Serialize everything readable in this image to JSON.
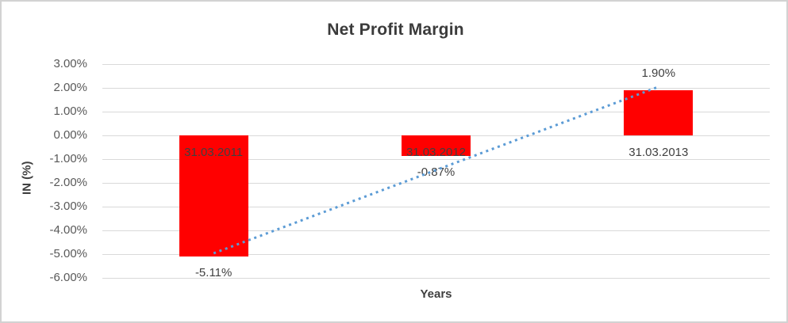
{
  "chart_data": {
    "type": "bar",
    "title": "Net Profit Margin",
    "xlabel": "Years",
    "ylabel": "IN (%)",
    "categories": [
      "31.03.2011",
      "31.03.2012",
      "31.03.2013"
    ],
    "values": [
      -5.11,
      -0.87,
      1.9
    ],
    "data_labels": [
      "-5.11%",
      "-0.87%",
      "1.90%"
    ],
    "ylim": [
      -6,
      3
    ],
    "ytick_step": 1,
    "ytick_labels": [
      "3.00%",
      "2.00%",
      "1.00%",
      "0.00%",
      "-1.00%",
      "-2.00%",
      "-3.00%",
      "-4.00%",
      "-5.00%",
      "-6.00%"
    ],
    "grid": true,
    "legend": false,
    "bar_color": "#ff0000",
    "trendline": {
      "type": "linear",
      "style": "dotted",
      "color": "#5b9bd5"
    },
    "colors": {
      "gridline": "#d9d9d9",
      "tick_label": "#595959",
      "title_text": "#3b3b3b",
      "axis_title_text": "#3f3f3f",
      "data_label_text": "#404040",
      "chart_border": "#d2d2d2",
      "background": "#ffffff"
    }
  }
}
